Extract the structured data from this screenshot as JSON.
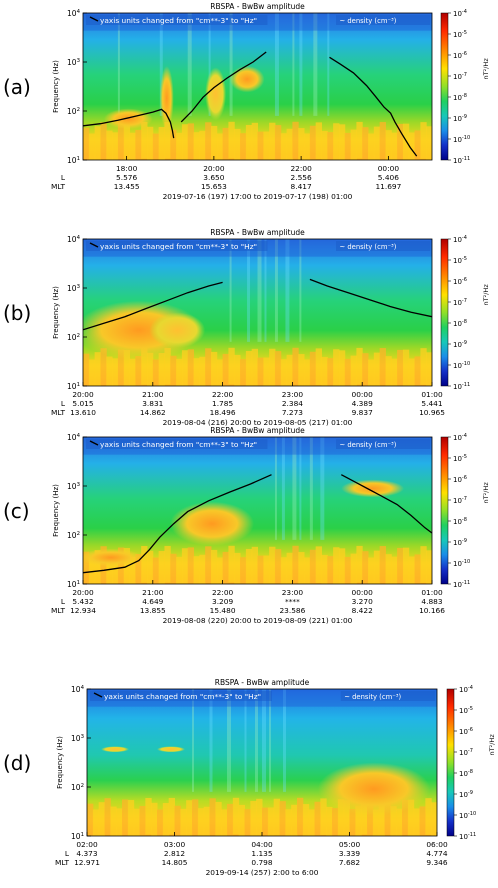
{
  "colorbar": {
    "title": "nT²/Hz",
    "ticks": [
      "10^-4",
      "10^-5",
      "10^-6",
      "10^-7",
      "10^-8",
      "10^-9",
      "10^-10",
      "10^-11"
    ],
    "colors": [
      "#c00000",
      "#ff2000",
      "#ff7a00",
      "#ffd400",
      "#a8e020",
      "#28d050",
      "#20c8a0",
      "#1890e0",
      "#1030c0",
      "#000090"
    ]
  },
  "chart_data": [
    {
      "panel_label": "(a)",
      "type": "heatmap",
      "title": "RBSPA -  BwBw amplitude",
      "annotation_left": "yaxis units changed from \"cm**-3\" to \"Hz\"",
      "annotation_right": "~ density (cm⁻³)",
      "ylabel": "Frequency (Hz)",
      "yscale": "log",
      "ylim": [
        10,
        10000
      ],
      "y_ticks": [
        "10^1",
        "10^2",
        "10^3",
        "10^4"
      ],
      "xlim_hours": [
        17,
        25
      ],
      "x_ticks": [
        {
          "t": 18,
          "time": "18:00",
          "L": "5.576",
          "MLT": "13.455"
        },
        {
          "t": 20,
          "time": "20:00",
          "L": "3.650",
          "MLT": "15.653"
        },
        {
          "t": 22,
          "time": "22:00",
          "L": "2.556",
          "MLT": "8.417"
        },
        {
          "t": 24,
          "time": "00:00",
          "L": "5.406",
          "MLT": "11.697"
        }
      ],
      "row_labels": {
        "L": "L",
        "MLT": "MLT"
      },
      "date_range": "2019-07-16 (197) 17:00 to 2019-07-17 (198) 01:00",
      "density_series": {
        "name": "~ density",
        "segments": [
          [
            [
              17.0,
              50
            ],
            [
              17.4,
              55
            ],
            [
              17.8,
              65
            ],
            [
              18.2,
              78
            ],
            [
              18.6,
              95
            ],
            [
              18.8,
              108
            ],
            [
              18.9,
              90
            ],
            [
              19.0,
              60
            ],
            [
              19.05,
              40
            ],
            [
              19.08,
              28
            ]
          ],
          [
            [
              19.25,
              60
            ],
            [
              19.5,
              100
            ],
            [
              19.75,
              190
            ],
            [
              20.0,
              300
            ],
            [
              20.3,
              470
            ],
            [
              20.6,
              700
            ],
            [
              20.9,
              1000
            ],
            [
              21.2,
              1600
            ]
          ],
          [
            [
              22.65,
              1250
            ],
            [
              22.9,
              900
            ],
            [
              23.2,
              600
            ],
            [
              23.5,
              330
            ],
            [
              23.7,
              200
            ],
            [
              23.9,
              120
            ],
            [
              24.05,
              90
            ],
            [
              24.15,
              60
            ],
            [
              24.3,
              35
            ],
            [
              24.5,
              18
            ],
            [
              24.65,
              12
            ]
          ]
        ]
      }
    },
    {
      "panel_label": "(b)",
      "type": "heatmap",
      "title": "RBSPA -  BwBw amplitude",
      "annotation_left": "yaxis units changed from \"cm**-3\" to \"Hz\"",
      "annotation_right": "~ density (cm⁻³)",
      "ylabel": "Frequency (Hz)",
      "yscale": "log",
      "ylim": [
        10,
        10000
      ],
      "y_ticks": [
        "10^1",
        "10^2",
        "10^3",
        "10^4"
      ],
      "xlim_hours": [
        20,
        25
      ],
      "x_ticks": [
        {
          "t": 20,
          "time": "20:00",
          "L": "5.015",
          "MLT": "13.610"
        },
        {
          "t": 21,
          "time": "21:00",
          "L": "3.831",
          "MLT": "14.862"
        },
        {
          "t": 22,
          "time": "22:00",
          "L": "1.785",
          "MLT": "18.496"
        },
        {
          "t": 23,
          "time": "23:00",
          "L": "2.384",
          "MLT": "7.273"
        },
        {
          "t": 24,
          "time": "00:00",
          "L": "4.389",
          "MLT": "9.837"
        },
        {
          "t": 25,
          "time": "01:00",
          "L": "5.441",
          "MLT": "10.965"
        }
      ],
      "row_labels": {
        "L": "L",
        "MLT": "MLT"
      },
      "date_range": "2019-08-04 (216) 20:00 to 2019-08-05 (217) 01:00",
      "density_series": {
        "name": "~ density",
        "segments": [
          [
            [
              20.0,
              140
            ],
            [
              20.3,
              190
            ],
            [
              20.6,
              260
            ],
            [
              20.9,
              380
            ],
            [
              21.2,
              550
            ],
            [
              21.5,
              800
            ],
            [
              21.8,
              1100
            ],
            [
              22.0,
              1300
            ]
          ],
          [
            [
              23.25,
              1500
            ],
            [
              23.5,
              1100
            ],
            [
              23.8,
              800
            ],
            [
              24.1,
              580
            ],
            [
              24.4,
              420
            ],
            [
              24.7,
              320
            ],
            [
              25.0,
              260
            ]
          ]
        ]
      }
    },
    {
      "panel_label": "(c)",
      "type": "heatmap",
      "title": "RBSPA -  BwBw amplitude",
      "annotation_left": "yaxis units changed from \"cm**-3\" to \"Hz\"",
      "annotation_right": "~ density (cm⁻³)",
      "ylabel": "Frequency (Hz)",
      "yscale": "log",
      "ylim": [
        10,
        10000
      ],
      "y_ticks": [
        "10^1",
        "10^2",
        "10^3",
        "10^4"
      ],
      "xlim_hours": [
        20,
        25
      ],
      "x_ticks": [
        {
          "t": 20,
          "time": "20:00",
          "L": "5.432",
          "MLT": "12.934"
        },
        {
          "t": 21,
          "time": "21:00",
          "L": "4.649",
          "MLT": "13.855"
        },
        {
          "t": 22,
          "time": "22:00",
          "L": "3.209",
          "MLT": "15.480"
        },
        {
          "t": 23,
          "time": "23:00",
          "L": "****",
          "MLT": "23.586"
        },
        {
          "t": 24,
          "time": "00:00",
          "L": "3.270",
          "MLT": "8.422"
        },
        {
          "t": 25,
          "time": "01:00",
          "L": "4.883",
          "MLT": "10.166"
        }
      ],
      "row_labels": {
        "L": "L",
        "MLT": "MLT"
      },
      "date_range": "2019-08-08 (220) 20:00 to 2019-08-09 (221) 01:00",
      "density_series": {
        "name": "~ density",
        "segments": [
          [
            [
              20.0,
              17
            ],
            [
              20.3,
              19
            ],
            [
              20.6,
              22
            ],
            [
              20.8,
              30
            ],
            [
              20.95,
              50
            ],
            [
              21.1,
              90
            ],
            [
              21.3,
              170
            ],
            [
              21.5,
              300
            ],
            [
              21.8,
              500
            ],
            [
              22.1,
              750
            ],
            [
              22.4,
              1100
            ],
            [
              22.7,
              1700
            ]
          ],
          [
            [
              23.7,
              1700
            ],
            [
              23.9,
              1200
            ],
            [
              24.1,
              850
            ],
            [
              24.3,
              600
            ],
            [
              24.5,
              420
            ],
            [
              24.7,
              250
            ],
            [
              24.9,
              140
            ],
            [
              25.0,
              110
            ]
          ]
        ]
      }
    },
    {
      "panel_label": "(d)",
      "type": "heatmap",
      "title": "RBSPA -  BwBw amplitude",
      "annotation_left": "yaxis units changed from \"cm**-3\" to \"Hz\"",
      "annotation_right": "~ density (cm⁻³)",
      "ylabel": "Frequency (Hz)",
      "yscale": "log",
      "ylim": [
        10,
        10000
      ],
      "y_ticks": [
        "10^1",
        "10^2",
        "10^3",
        "10^4"
      ],
      "xlim_hours": [
        2,
        6
      ],
      "x_ticks": [
        {
          "t": 2,
          "time": "02:00",
          "L": "4.373",
          "MLT": "12.971"
        },
        {
          "t": 3,
          "time": "03:00",
          "L": "2.812",
          "MLT": "14.805"
        },
        {
          "t": 4,
          "time": "04:00",
          "L": "1.135",
          "MLT": "0.798"
        },
        {
          "t": 5,
          "time": "05:00",
          "L": "3.339",
          "MLT": "7.682"
        },
        {
          "t": 6,
          "time": "06:00",
          "L": "4.774",
          "MLT": "9.346"
        }
      ],
      "row_labels": {
        "L": "L",
        "MLT": "MLT"
      },
      "date_range": "2019-09-14 (257) 2:00 to 6:00",
      "density_series": {
        "name": "~ density",
        "segments": []
      }
    }
  ]
}
